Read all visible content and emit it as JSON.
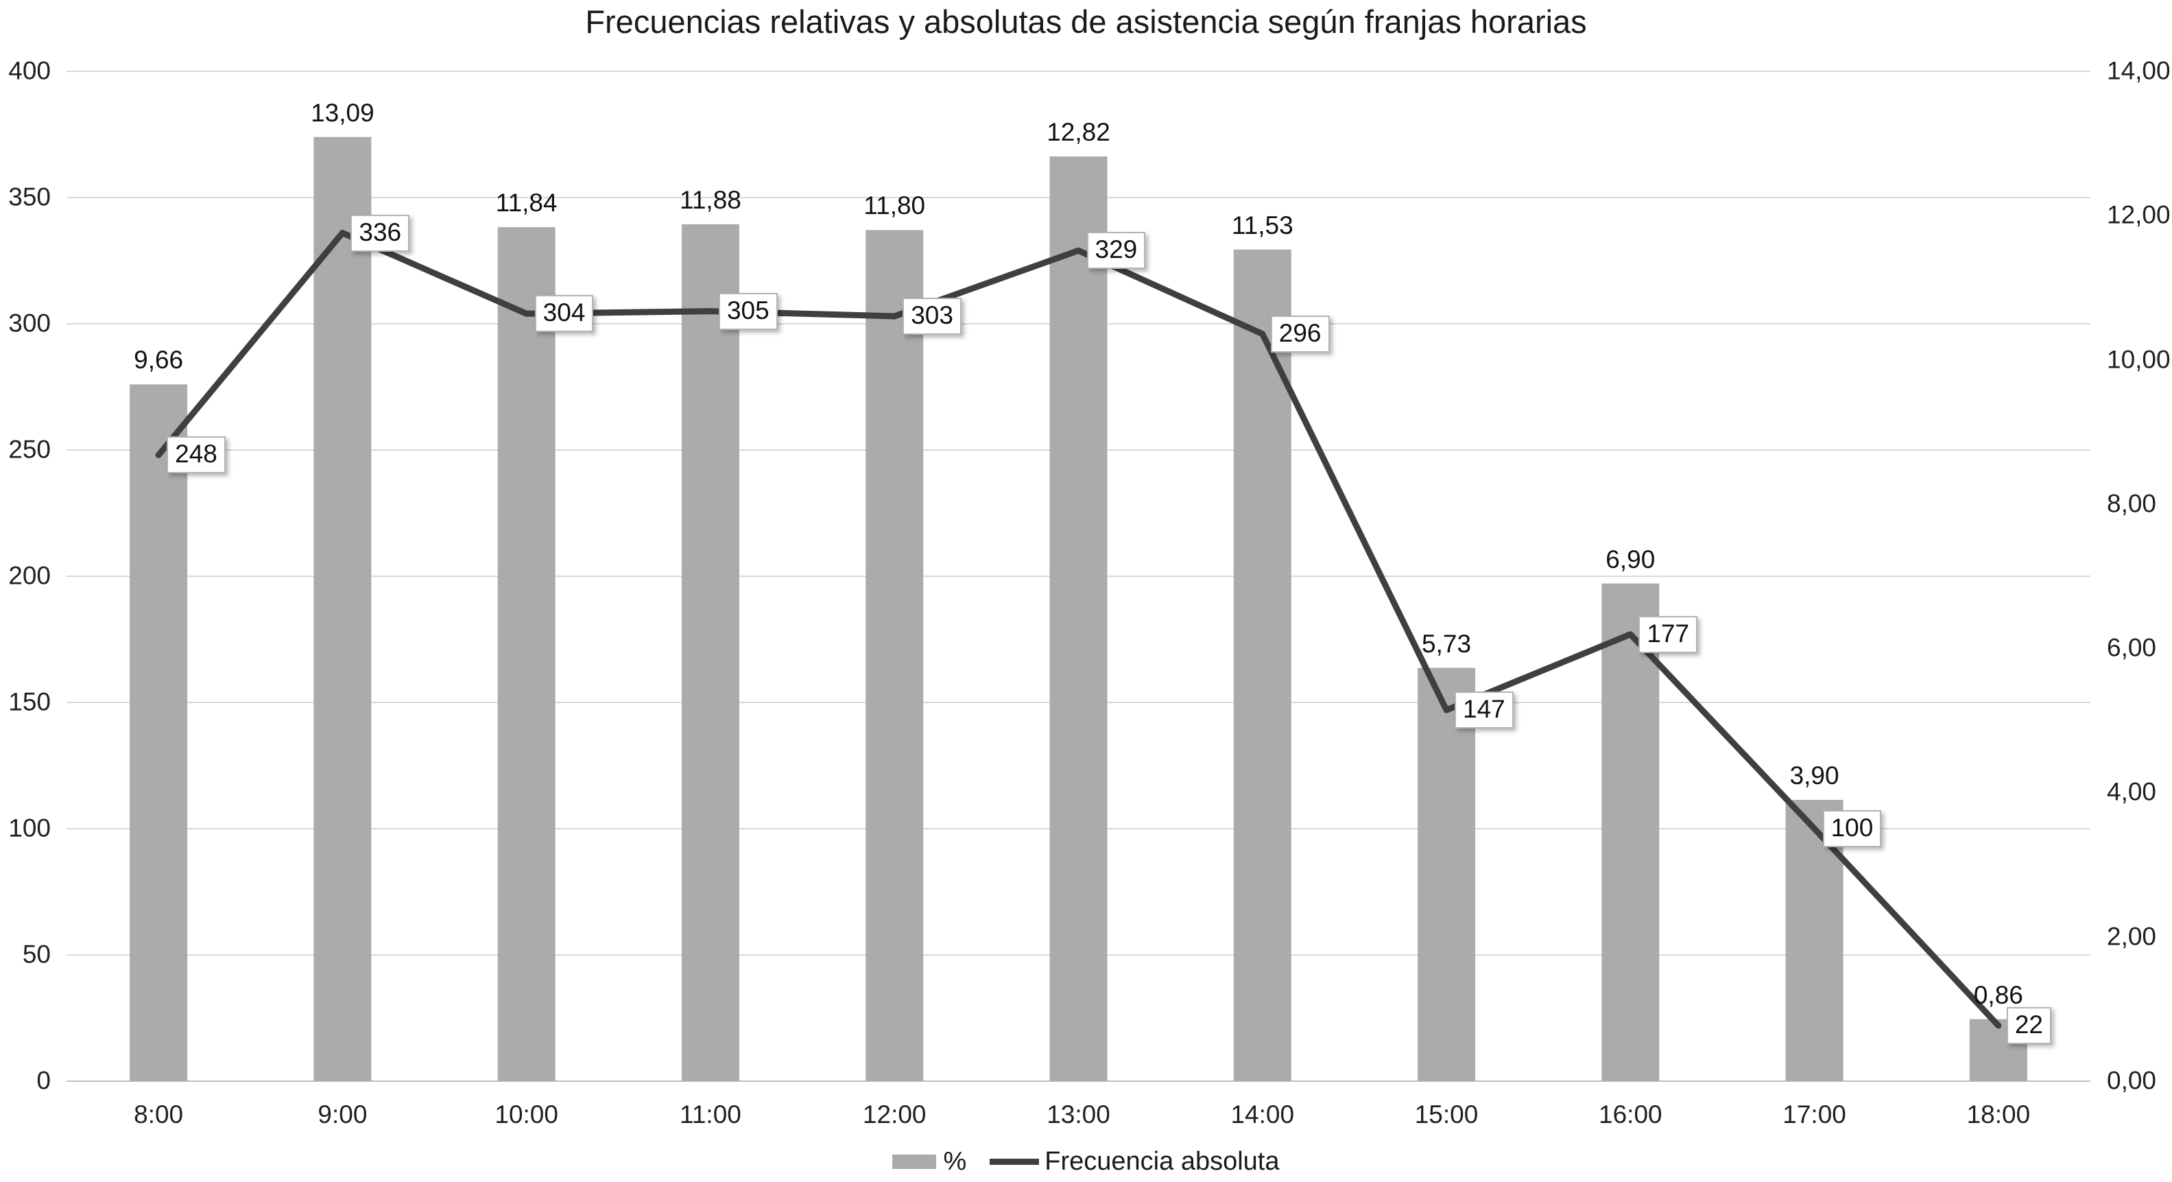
{
  "page": {
    "title": "Frecuencias relativas y absolutas de asistencia según franjas horarias"
  },
  "chart_data": {
    "type": "combo-bar-line",
    "title": "Frecuencias relativas y absolutas de asistencia según franjas horarias",
    "categories": [
      "8:00",
      "9:00",
      "10:00",
      "11:00",
      "12:00",
      "13:00",
      "14:00",
      "15:00",
      "16:00",
      "17:00",
      "18:00"
    ],
    "series": [
      {
        "name": "%",
        "type": "bar",
        "axis": "right",
        "color": "#ababab",
        "values": [
          9.66,
          13.09,
          11.84,
          11.88,
          11.8,
          12.82,
          11.53,
          5.73,
          6.9,
          3.9,
          0.86
        ],
        "labels": [
          "9,66",
          "13,09",
          "11,84",
          "11,88",
          "11,80",
          "12,82",
          "11,53",
          "5,73",
          "6,90",
          "3,90",
          "0,86"
        ]
      },
      {
        "name": "Frecuencia absoluta",
        "type": "line",
        "axis": "left",
        "color": "#3f3f3f",
        "values": [
          248,
          336,
          304,
          305,
          303,
          329,
          296,
          147,
          177,
          100,
          22
        ],
        "labels": [
          "248",
          "336",
          "304",
          "305",
          "303",
          "329",
          "296",
          "147",
          "177",
          "100",
          "22"
        ]
      }
    ],
    "left_axis": {
      "min": 0,
      "max": 400,
      "step": 50,
      "tick_labels": [
        "400",
        "350",
        "300",
        "250",
        "200",
        "150",
        "100",
        "50",
        "0"
      ]
    },
    "right_axis": {
      "min": 0,
      "max": 14,
      "step": 2,
      "tick_labels": [
        "14,00",
        "12,00",
        "10,00",
        "8,00",
        "6,00",
        "4,00",
        "2,00",
        "0,00"
      ]
    },
    "grid": true,
    "legend_position": "bottom",
    "colors": {
      "grid": "#d9d9d9",
      "axis_line": "#bfbfbf",
      "text": "#1f1f1f",
      "label_box_border": "#b3b3b3"
    }
  }
}
